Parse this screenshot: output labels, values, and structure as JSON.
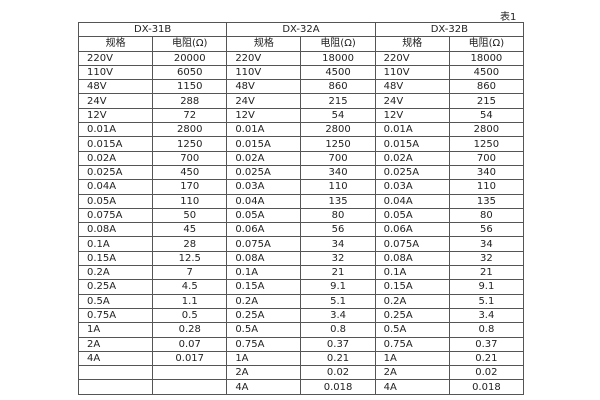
{
  "caption": "表1",
  "table": {
    "groups": [
      "DX-31B",
      "DX-32A",
      "DX-32B"
    ],
    "subheaders": [
      "规格",
      "电阻(Ω)",
      "规格",
      "电阻(Ω)",
      "规格",
      "电阻(Ω)"
    ],
    "rows": [
      [
        "220V",
        "20000",
        "220V",
        "18000",
        "220V",
        "18000"
      ],
      [
        "110V",
        "6050",
        "110V",
        "4500",
        "110V",
        "4500"
      ],
      [
        "48V",
        "1150",
        "48V",
        "860",
        "48V",
        "860"
      ],
      [
        "24V",
        "288",
        "24V",
        "215",
        "24V",
        "215"
      ],
      [
        "12V",
        "72",
        "12V",
        "54",
        "12V",
        "54"
      ],
      [
        "0.01A",
        "2800",
        "0.01A",
        "2800",
        "0.01A",
        "2800"
      ],
      [
        "0.015A",
        "1250",
        "0.015A",
        "1250",
        "0.015A",
        "1250"
      ],
      [
        "0.02A",
        "700",
        "0.02A",
        "700",
        "0.02A",
        "700"
      ],
      [
        "0.025A",
        "450",
        "0.025A",
        "340",
        "0.025A",
        "340"
      ],
      [
        "0.04A",
        "170",
        "0.03A",
        "110",
        "0.03A",
        "110"
      ],
      [
        "0.05A",
        "110",
        "0.04A",
        "135",
        "0.04A",
        "135"
      ],
      [
        "0.075A",
        "50",
        "0.05A",
        "80",
        "0.05A",
        "80"
      ],
      [
        "0.08A",
        "45",
        "0.06A",
        "56",
        "0.06A",
        "56"
      ],
      [
        "0.1A",
        "28",
        "0.075A",
        "34",
        "0.075A",
        "34"
      ],
      [
        "0.15A",
        "12.5",
        "0.08A",
        "32",
        "0.08A",
        "32"
      ],
      [
        "0.2A",
        "7",
        "0.1A",
        "21",
        "0.1A",
        "21"
      ],
      [
        "0.25A",
        "4.5",
        "0.15A",
        "9.1",
        "0.15A",
        "9.1"
      ],
      [
        "0.5A",
        "1.1",
        "0.2A",
        "5.1",
        "0.2A",
        "5.1"
      ],
      [
        "0.75A",
        "0.5",
        "0.25A",
        "3.4",
        "0.25A",
        "3.4"
      ],
      [
        "1A",
        "0.28",
        "0.5A",
        "0.8",
        "0.5A",
        "0.8"
      ],
      [
        "2A",
        "0.07",
        "0.75A",
        "0.37",
        "0.75A",
        "0.37"
      ],
      [
        "4A",
        "0.017",
        "1A",
        "0.21",
        "1A",
        "0.21"
      ],
      [
        null,
        null,
        "2A",
        "0.02",
        "2A",
        "0.02"
      ],
      [
        null,
        null,
        "4A",
        "0.018",
        "4A",
        "0.018"
      ]
    ]
  }
}
